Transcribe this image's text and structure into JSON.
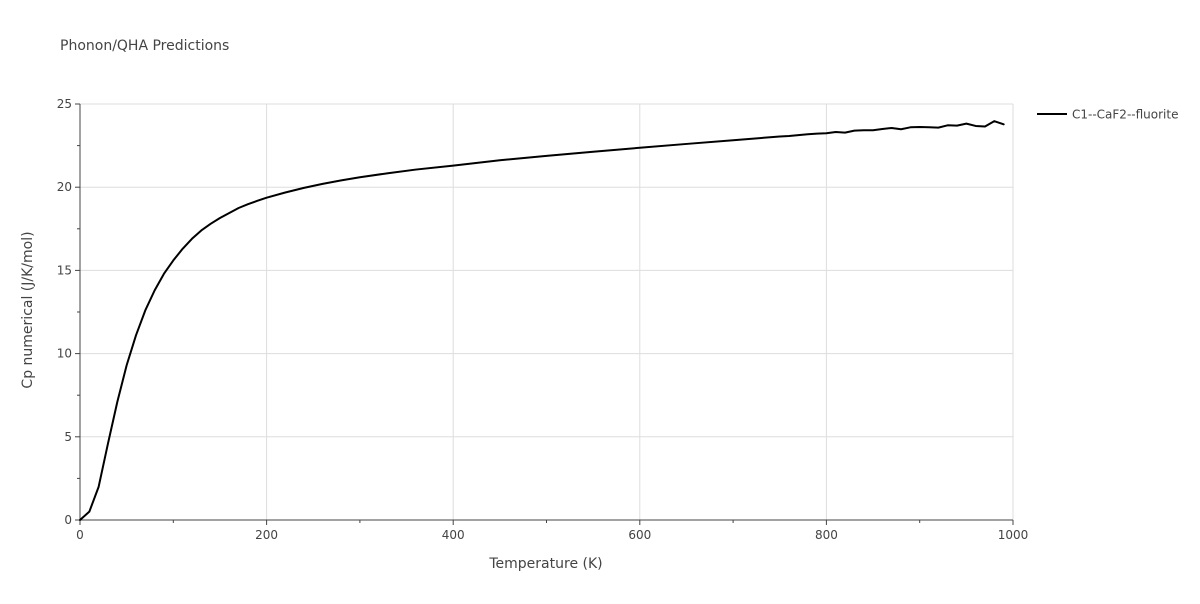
{
  "chart_data": {
    "type": "line",
    "title": "Phonon/QHA Predictions",
    "xlabel": "Temperature (K)",
    "ylabel": "Cp numerical (J/K/mol)",
    "xlim": [
      0,
      1000
    ],
    "ylim": [
      0,
      25
    ],
    "xticks": [
      0,
      200,
      400,
      600,
      800,
      1000
    ],
    "yticks": [
      0,
      5,
      10,
      15,
      20,
      25
    ],
    "grid": true,
    "legend_position": "top-right",
    "series": [
      {
        "name": "C1--CaF2--fluorite",
        "color": "#000000",
        "x": [
          0,
          10,
          20,
          30,
          40,
          50,
          60,
          70,
          80,
          90,
          100,
          110,
          120,
          130,
          140,
          150,
          160,
          170,
          180,
          190,
          200,
          220,
          240,
          260,
          280,
          300,
          330,
          360,
          400,
          450,
          500,
          550,
          600,
          650,
          700,
          750,
          760,
          770,
          780,
          790,
          800,
          810,
          820,
          830,
          840,
          850,
          860,
          870,
          880,
          890,
          900,
          910,
          920,
          930,
          940,
          950,
          960,
          970,
          980,
          990
        ],
        "y": [
          0,
          0.5,
          2.0,
          4.6,
          7.1,
          9.3,
          11.1,
          12.6,
          13.8,
          14.8,
          15.6,
          16.3,
          16.9,
          17.4,
          17.8,
          18.15,
          18.45,
          18.75,
          18.98,
          19.18,
          19.37,
          19.68,
          19.96,
          20.2,
          20.41,
          20.6,
          20.84,
          21.06,
          21.3,
          21.62,
          21.88,
          22.13,
          22.37,
          22.6,
          22.82,
          23.05,
          23.08,
          23.13,
          23.18,
          23.22,
          23.24,
          23.32,
          23.28,
          23.4,
          23.42,
          23.42,
          23.5,
          23.56,
          23.48,
          23.6,
          23.62,
          23.6,
          23.58,
          23.72,
          23.7,
          23.82,
          23.68,
          23.65,
          23.97,
          23.78
        ]
      }
    ]
  }
}
